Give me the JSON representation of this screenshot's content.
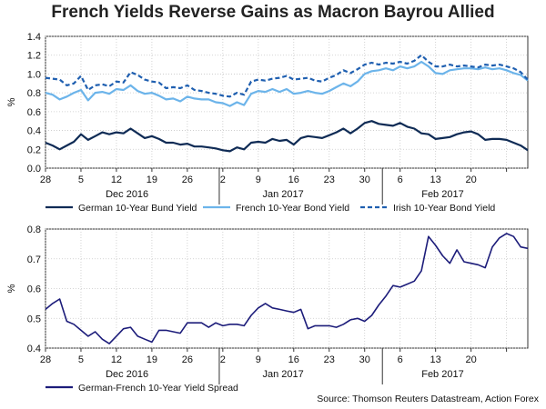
{
  "title": "French Yields Reverse Gains as Macron Bayrou Allied",
  "source": "Source: Thomson Reuters Datastream, Action Forex",
  "colors": {
    "german": "#0f2b55",
    "french": "#6cb4ea",
    "irish": "#1f5fb0",
    "spread": "#1c1c7a"
  },
  "chart_data": [
    {
      "type": "line",
      "ylabel": "%",
      "ylim": [
        0,
        1.4
      ],
      "yticks": [
        0,
        0.2,
        0.4,
        0.6,
        0.8,
        1.0,
        1.2,
        1.4
      ],
      "ytick_labels": [
        "0.0",
        "0.2",
        "0.4",
        "0.6",
        "0.8",
        "1.0",
        "1.2",
        "1.4"
      ],
      "xticks": [
        0,
        5,
        10,
        15,
        20,
        25,
        30,
        35,
        40,
        45,
        50,
        55,
        60,
        65,
        70
      ],
      "xtick_labels": [
        "28",
        "5",
        "12",
        "19",
        "26",
        "2",
        "9",
        "16",
        "23",
        "30",
        "6",
        "13",
        "20",
        "",
        ""
      ],
      "xtick_labels_show": [
        "28",
        "5",
        "12",
        "19",
        "26",
        "2",
        "9",
        "16",
        "23",
        "30",
        "6",
        "13",
        "20"
      ],
      "month_labels": [
        "Dec 2016",
        "Jan 2017",
        "Feb 2017"
      ],
      "month_label_x": [
        11.5,
        33.5,
        56
      ],
      "month_dividers": [
        24.5,
        47.5
      ],
      "series": [
        {
          "name": "German 10-Year Bund Yield",
          "style": "solid",
          "values": [
            0.27,
            0.24,
            0.2,
            0.24,
            0.28,
            0.36,
            0.3,
            0.34,
            0.38,
            0.36,
            0.38,
            0.37,
            0.42,
            0.37,
            0.32,
            0.34,
            0.31,
            0.27,
            0.27,
            0.25,
            0.26,
            0.23,
            0.23,
            0.22,
            0.21,
            0.19,
            0.18,
            0.22,
            0.2,
            0.27,
            0.28,
            0.27,
            0.31,
            0.29,
            0.3,
            0.25,
            0.32,
            0.34,
            0.33,
            0.32,
            0.35,
            0.38,
            0.42,
            0.37,
            0.42,
            0.48,
            0.5,
            0.47,
            0.46,
            0.45,
            0.48,
            0.44,
            0.42,
            0.37,
            0.36,
            0.31,
            0.32,
            0.33,
            0.36,
            0.38,
            0.39,
            0.36,
            0.3,
            0.31,
            0.31,
            0.3,
            0.27,
            0.24,
            0.19
          ]
        },
        {
          "name": "French 10-Year Bond Yield",
          "style": "solid",
          "values": [
            0.8,
            0.78,
            0.73,
            0.76,
            0.8,
            0.83,
            0.72,
            0.8,
            0.81,
            0.79,
            0.84,
            0.83,
            0.88,
            0.82,
            0.79,
            0.8,
            0.77,
            0.73,
            0.74,
            0.71,
            0.76,
            0.74,
            0.73,
            0.73,
            0.7,
            0.69,
            0.66,
            0.7,
            0.67,
            0.79,
            0.82,
            0.81,
            0.84,
            0.81,
            0.84,
            0.79,
            0.8,
            0.82,
            0.8,
            0.79,
            0.82,
            0.86,
            0.9,
            0.87,
            0.92,
            1.0,
            1.03,
            1.04,
            1.06,
            1.04,
            1.08,
            1.06,
            1.08,
            1.13,
            1.08,
            1.01,
            1.0,
            1.04,
            1.05,
            1.06,
            1.06,
            1.05,
            1.07,
            1.05,
            1.06,
            1.04,
            1.01,
            0.99,
            0.93
          ]
        },
        {
          "name": "Irish 10-Year Bond Yield",
          "style": "dashed",
          "values": [
            0.96,
            0.95,
            0.94,
            0.88,
            0.9,
            0.98,
            0.83,
            0.88,
            0.89,
            0.87,
            0.92,
            0.91,
            1.02,
            0.99,
            0.94,
            0.92,
            0.91,
            0.85,
            0.86,
            0.85,
            0.88,
            0.83,
            0.82,
            0.8,
            0.79,
            0.77,
            0.76,
            0.8,
            0.78,
            0.92,
            0.94,
            0.93,
            0.95,
            0.96,
            0.98,
            0.94,
            0.95,
            0.96,
            0.93,
            0.92,
            0.96,
            0.99,
            1.04,
            1.01,
            1.05,
            1.1,
            1.12,
            1.1,
            1.12,
            1.11,
            1.13,
            1.11,
            1.14,
            1.2,
            1.13,
            1.08,
            1.08,
            1.1,
            1.08,
            1.09,
            1.08,
            1.07,
            1.1,
            1.09,
            1.1,
            1.08,
            1.06,
            1.02,
            0.94
          ]
        }
      ]
    },
    {
      "type": "line",
      "ylabel": "%",
      "ylim": [
        0.4,
        0.8
      ],
      "yticks": [
        0.4,
        0.5,
        0.6,
        0.7,
        0.8
      ],
      "ytick_labels": [
        "0.4",
        "0.5",
        "0.6",
        "0.7",
        "0.8"
      ],
      "xticks": [
        0,
        5,
        10,
        15,
        20,
        25,
        30,
        35,
        40,
        45,
        50,
        55,
        60,
        65,
        70
      ],
      "xtick_labels_show": [
        "28",
        "5",
        "12",
        "19",
        "26",
        "2",
        "9",
        "16",
        "23",
        "30",
        "6",
        "13",
        "20"
      ],
      "month_labels": [
        "Dec 2016",
        "Jan 2017",
        "Feb 2017"
      ],
      "month_label_x": [
        11.5,
        33.5,
        56
      ],
      "month_dividers": [
        24.5,
        47.5
      ],
      "series": [
        {
          "name": "German-French 10-Year Yield Spread",
          "style": "solid",
          "values": [
            0.53,
            0.55,
            0.565,
            0.49,
            0.48,
            0.46,
            0.44,
            0.455,
            0.43,
            0.415,
            0.44,
            0.465,
            0.47,
            0.44,
            0.43,
            0.42,
            0.46,
            0.46,
            0.455,
            0.45,
            0.485,
            0.485,
            0.485,
            0.47,
            0.485,
            0.475,
            0.48,
            0.48,
            0.475,
            0.51,
            0.535,
            0.55,
            0.535,
            0.53,
            0.525,
            0.52,
            0.53,
            0.465,
            0.475,
            0.475,
            0.475,
            0.47,
            0.48,
            0.495,
            0.5,
            0.49,
            0.51,
            0.545,
            0.575,
            0.61,
            0.605,
            0.615,
            0.625,
            0.66,
            0.775,
            0.745,
            0.71,
            0.685,
            0.73,
            0.69,
            0.685,
            0.68,
            0.67,
            0.74,
            0.77,
            0.785,
            0.775,
            0.74,
            0.735
          ]
        }
      ]
    }
  ]
}
